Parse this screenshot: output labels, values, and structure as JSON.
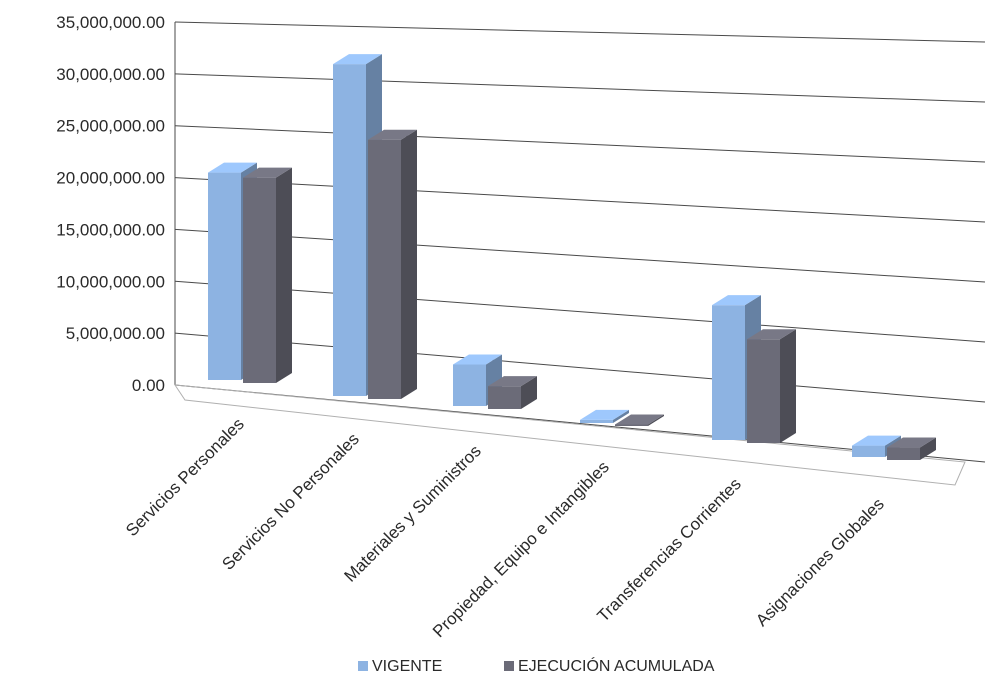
{
  "chart_data": {
    "type": "bar",
    "title": "",
    "xlabel": "",
    "ylabel": "",
    "ylim": [
      0,
      35000000
    ],
    "y_ticks": [
      "0.00",
      "5,000,000.00",
      "10,000,000.00",
      "15,000,000.00",
      "20,000,000.00",
      "25,000,000.00",
      "30,000,000.00",
      "35,000,000.00"
    ],
    "categories": [
      "Servicios  Personales",
      "Servicios No Personales",
      "Materiales y Suministros",
      "Propiedad, Equipo e Intangibles",
      "Transferencias Corrientes",
      "Asignaciones Globales"
    ],
    "series": [
      {
        "name": "VIGENTE",
        "color": "#8db3e2",
        "values": [
          20000000,
          32000000,
          4000000,
          300000,
          13000000,
          1100000
        ]
      },
      {
        "name": "EJECUCIÓN ACUMULADA",
        "color": "#6b6b78",
        "values": [
          19800000,
          25000000,
          2200000,
          150000,
          10000000,
          1200000
        ]
      }
    ],
    "grid": true,
    "legend_position": "bottom",
    "style": "3d-clustered"
  }
}
